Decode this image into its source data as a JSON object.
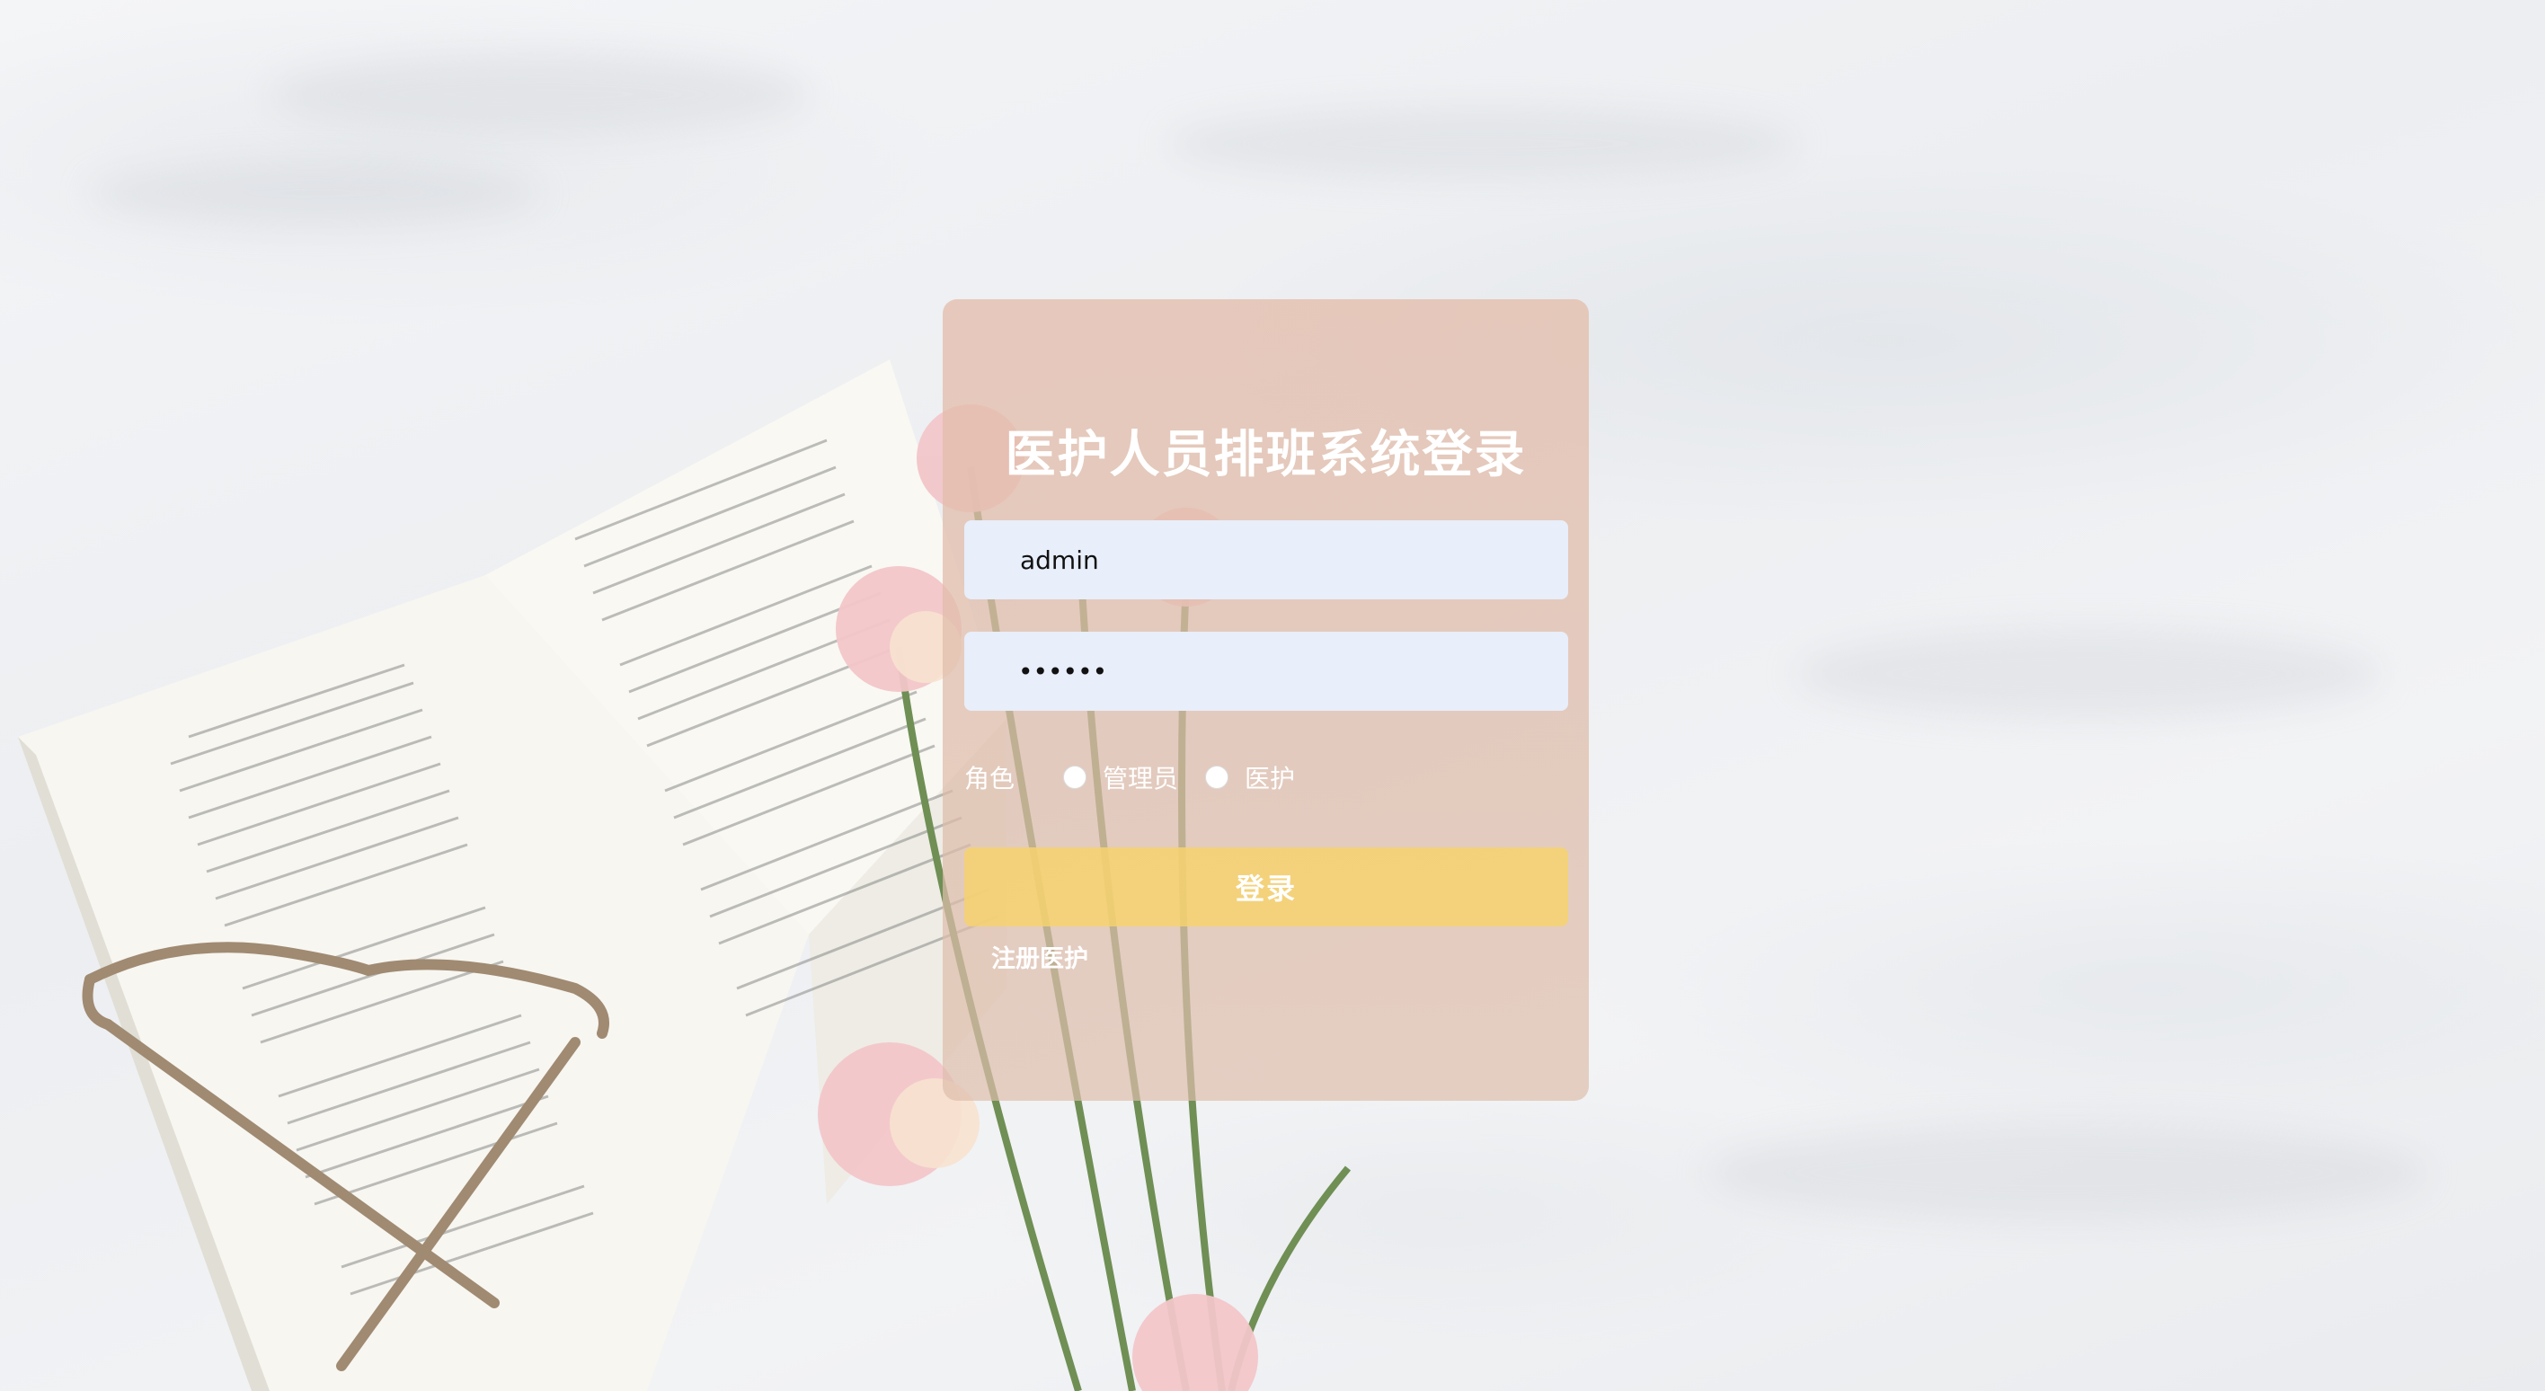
{
  "login": {
    "title": "医护人员排班系统登录",
    "username_value": "admin",
    "password_value": "••••••",
    "role_label": "角色",
    "role_options": [
      "管理员",
      "医护"
    ],
    "login_button": "登录",
    "register_link": "注册医护"
  },
  "colors": {
    "card": "#e4beac",
    "input_bg": "#e8eefa",
    "login_button": "#f6d26e"
  }
}
